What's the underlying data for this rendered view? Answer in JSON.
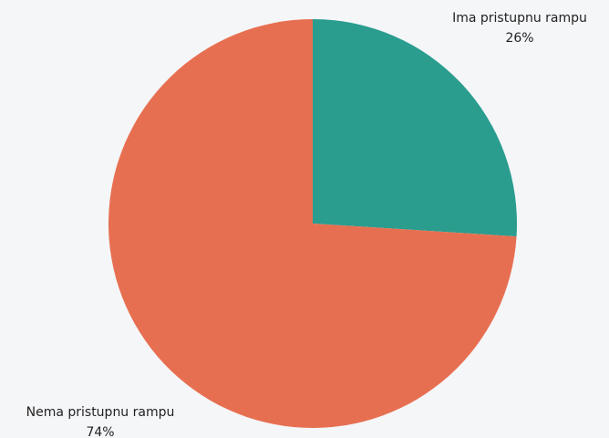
{
  "chart_data": {
    "type": "pie",
    "categories": [
      "Ima pristupnu rampu",
      "Nema pristupnu rampu"
    ],
    "values": [
      26,
      74
    ],
    "value_labels": [
      "26%",
      "74%"
    ],
    "colors": [
      "#2a9d8f",
      "#e76f51"
    ]
  }
}
